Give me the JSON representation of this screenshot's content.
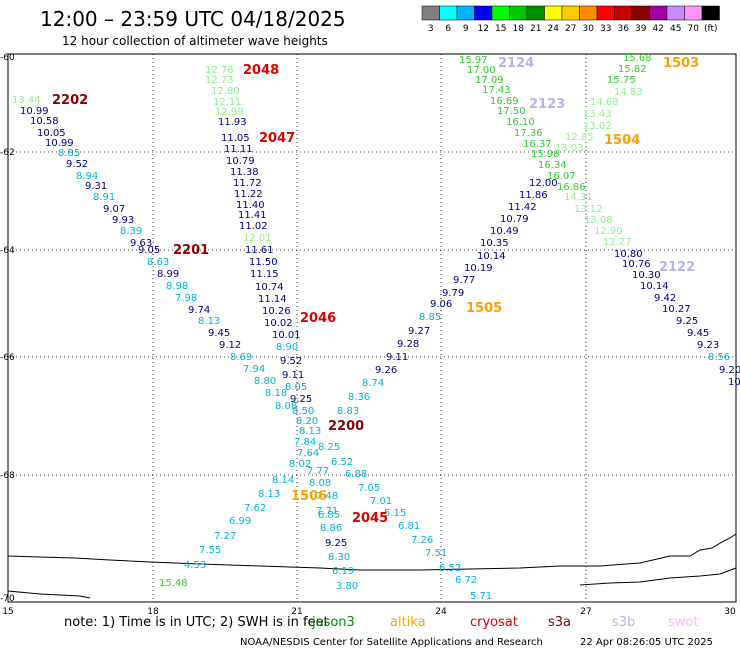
{
  "header": {
    "title": "12:00 – 23:59 UTC 04/18/2025",
    "subtitle": "12 hour collection of altimeter wave heights"
  },
  "legend": {
    "unit": "(ft)",
    "bins": [
      {
        "label": "3",
        "color": "#808080"
      },
      {
        "label": "6",
        "color": "#00ffff"
      },
      {
        "label": "9",
        "color": "#00b4ff"
      },
      {
        "label": "12",
        "color": "#0000ff"
      },
      {
        "label": "15",
        "color": "#00ff00"
      },
      {
        "label": "18",
        "color": "#00c800"
      },
      {
        "label": "21",
        "color": "#008c00"
      },
      {
        "label": "24",
        "color": "#ffff00"
      },
      {
        "label": "27",
        "color": "#ffcc00"
      },
      {
        "label": "30",
        "color": "#ff8c00"
      },
      {
        "label": "33",
        "color": "#ff0000"
      },
      {
        "label": "36",
        "color": "#c80000"
      },
      {
        "label": "39",
        "color": "#8c0000"
      },
      {
        "label": "42",
        "color": "#a000a0"
      },
      {
        "label": "45",
        "color": "#c88cff"
      },
      {
        "label": "70",
        "color": "#ff96ff"
      },
      {
        "label": "",
        "color": "#000000"
      }
    ]
  },
  "axes": {
    "lat_labels": [
      "-60",
      "-62",
      "-64",
      "-66",
      "-68",
      "-70"
    ],
    "lon_labels": [
      "15",
      "18",
      "21",
      "24",
      "27",
      "30"
    ]
  },
  "colors": {
    "c_green": "#32cd32",
    "c_lightgreen": "#90ee90",
    "c_navy": "#00008b",
    "c_blue": "#1e3ce6",
    "c_cyan": "#00b4dc",
    "c_lavender": "#b4b4f0",
    "c_red": "#dc0000",
    "c_darkred": "#8b0000",
    "c_orange": "#ffa000",
    "c_darkgreen": "#008c00"
  },
  "tracks": [
    {
      "label": "2202",
      "color": "c_darkred"
    },
    {
      "label": "2201",
      "color": "c_darkred"
    },
    {
      "label": "2048",
      "color": "c_red"
    },
    {
      "label": "2047",
      "color": "c_red"
    },
    {
      "label": "2046",
      "color": "c_red"
    },
    {
      "label": "2045",
      "color": "c_red"
    },
    {
      "label": "2200",
      "color": "c_darkred"
    },
    {
      "label": "1505",
      "color": "c_orange"
    },
    {
      "label": "1506",
      "color": "c_orange"
    },
    {
      "label": "2124",
      "color": "c_lavender"
    },
    {
      "label": "2123",
      "color": "c_lavender"
    },
    {
      "label": "1503",
      "color": "c_orange"
    },
    {
      "label": "1504",
      "color": "c_orange"
    },
    {
      "label": "2122",
      "color": "c_lavender"
    }
  ],
  "readings": [
    {
      "v": "13.44",
      "c": "c_lightgreen"
    },
    {
      "v": "10.99",
      "c": "c_navy"
    },
    {
      "v": "10.58",
      "c": "c_navy"
    },
    {
      "v": "10.05",
      "c": "c_navy"
    },
    {
      "v": "10.99",
      "c": "c_navy"
    },
    {
      "v": "8.85",
      "c": "c_cyan"
    },
    {
      "v": "9.52",
      "c": "c_navy"
    },
    {
      "v": "8.94",
      "c": "c_cyan"
    },
    {
      "v": "9.31",
      "c": "c_navy"
    },
    {
      "v": "8.91",
      "c": "c_cyan"
    },
    {
      "v": "9.07",
      "c": "c_navy"
    },
    {
      "v": "9.93",
      "c": "c_navy"
    },
    {
      "v": "8.39",
      "c": "c_cyan"
    },
    {
      "v": "9.63",
      "c": "c_navy"
    },
    {
      "v": "9.05",
      "c": "c_navy"
    },
    {
      "v": "8.63",
      "c": "c_cyan"
    },
    {
      "v": "8.99",
      "c": "c_navy"
    },
    {
      "v": "8.98",
      "c": "c_cyan"
    },
    {
      "v": "7.98",
      "c": "c_cyan"
    },
    {
      "v": "9.74",
      "c": "c_navy"
    },
    {
      "v": "8.13",
      "c": "c_cyan"
    },
    {
      "v": "9.45",
      "c": "c_navy"
    },
    {
      "v": "9.12",
      "c": "c_navy"
    },
    {
      "v": "8.69",
      "c": "c_cyan"
    },
    {
      "v": "7.94",
      "c": "c_cyan"
    },
    {
      "v": "8.80",
      "c": "c_cyan"
    },
    {
      "v": "8.18",
      "c": "c_cyan"
    },
    {
      "v": "8.08",
      "c": "c_cyan"
    },
    {
      "v": "12.76",
      "c": "c_lightgreen"
    },
    {
      "v": "12.73",
      "c": "c_lightgreen"
    },
    {
      "v": "12.80",
      "c": "c_lightgreen"
    },
    {
      "v": "12.11",
      "c": "c_lightgreen"
    },
    {
      "v": "12.99",
      "c": "c_lightgreen"
    },
    {
      "v": "11.93",
      "c": "c_navy"
    },
    {
      "v": "11.05",
      "c": "c_navy"
    },
    {
      "v": "11.11",
      "c": "c_navy"
    },
    {
      "v": "10.79",
      "c": "c_navy"
    },
    {
      "v": "11.38",
      "c": "c_navy"
    },
    {
      "v": "11.72",
      "c": "c_navy"
    },
    {
      "v": "11.22",
      "c": "c_navy"
    },
    {
      "v": "11.40",
      "c": "c_navy"
    },
    {
      "v": "11.41",
      "c": "c_navy"
    },
    {
      "v": "11.02",
      "c": "c_navy"
    },
    {
      "v": "12.01",
      "c": "c_lightgreen"
    },
    {
      "v": "11.61",
      "c": "c_navy"
    },
    {
      "v": "11.50",
      "c": "c_navy"
    },
    {
      "v": "11.15",
      "c": "c_navy"
    },
    {
      "v": "10.74",
      "c": "c_navy"
    },
    {
      "v": "11.14",
      "c": "c_navy"
    },
    {
      "v": "10.26",
      "c": "c_navy"
    },
    {
      "v": "10.02",
      "c": "c_navy"
    },
    {
      "v": "10.01",
      "c": "c_navy"
    },
    {
      "v": "8.90",
      "c": "c_cyan"
    },
    {
      "v": "9.52",
      "c": "c_navy"
    },
    {
      "v": "9.11",
      "c": "c_navy"
    },
    {
      "v": "8.05",
      "c": "c_cyan"
    },
    {
      "v": "9.25",
      "c": "c_navy"
    },
    {
      "v": "8.50",
      "c": "c_cyan"
    },
    {
      "v": "8.20",
      "c": "c_cyan"
    },
    {
      "v": "8.13",
      "c": "c_cyan"
    },
    {
      "v": "7.84",
      "c": "c_cyan"
    },
    {
      "v": "7.64",
      "c": "c_cyan"
    },
    {
      "v": "8.02",
      "c": "c_cyan"
    },
    {
      "v": "7.77",
      "c": "c_cyan"
    },
    {
      "v": "8.83",
      "c": "c_cyan"
    },
    {
      "v": "8.25",
      "c": "c_cyan"
    },
    {
      "v": "6.52",
      "c": "c_cyan"
    },
    {
      "v": "6.88",
      "c": "c_cyan"
    },
    {
      "v": "7.05",
      "c": "c_cyan"
    },
    {
      "v": "7.01",
      "c": "c_cyan"
    },
    {
      "v": "5.15",
      "c": "c_cyan"
    },
    {
      "v": "6.81",
      "c": "c_cyan"
    },
    {
      "v": "7.26",
      "c": "c_cyan"
    },
    {
      "v": "7.51",
      "c": "c_cyan"
    },
    {
      "v": "6.52",
      "c": "c_cyan"
    },
    {
      "v": "6.72",
      "c": "c_cyan"
    },
    {
      "v": "5.71",
      "c": "c_cyan"
    },
    {
      "v": "8.14",
      "c": "c_cyan"
    },
    {
      "v": "8.13",
      "c": "c_cyan"
    },
    {
      "v": "7.62",
      "c": "c_cyan"
    },
    {
      "v": "6.99",
      "c": "c_cyan"
    },
    {
      "v": "7.27",
      "c": "c_cyan"
    },
    {
      "v": "7.55",
      "c": "c_cyan"
    },
    {
      "v": "4.53",
      "c": "c_cyan"
    },
    {
      "v": "15.48",
      "c": "c_green"
    },
    {
      "v": "8.08",
      "c": "c_cyan"
    },
    {
      "v": "7.48",
      "c": "c_cyan"
    },
    {
      "v": "7.71",
      "c": "c_cyan"
    },
    {
      "v": "6.85",
      "c": "c_cyan"
    },
    {
      "v": "8.86",
      "c": "c_cyan"
    },
    {
      "v": "9.25",
      "c": "c_navy"
    },
    {
      "v": "8.30",
      "c": "c_cyan"
    },
    {
      "v": "6.19",
      "c": "c_cyan"
    },
    {
      "v": "3.80",
      "c": "c_cyan"
    },
    {
      "v": "8.74",
      "c": "c_cyan"
    },
    {
      "v": "8.36",
      "c": "c_cyan"
    },
    {
      "v": "9.26",
      "c": "c_navy"
    },
    {
      "v": "9.11",
      "c": "c_navy"
    },
    {
      "v": "9.28",
      "c": "c_navy"
    },
    {
      "v": "9.27",
      "c": "c_navy"
    },
    {
      "v": "8.85",
      "c": "c_cyan"
    },
    {
      "v": "9.06",
      "c": "c_navy"
    },
    {
      "v": "9.79",
      "c": "c_navy"
    },
    {
      "v": "9.77",
      "c": "c_navy"
    },
    {
      "v": "10.19",
      "c": "c_navy"
    },
    {
      "v": "10.14",
      "c": "c_navy"
    },
    {
      "v": "10.35",
      "c": "c_navy"
    },
    {
      "v": "10.49",
      "c": "c_navy"
    },
    {
      "v": "10.79",
      "c": "c_navy"
    },
    {
      "v": "11.42",
      "c": "c_navy"
    },
    {
      "v": "11.86",
      "c": "c_navy"
    },
    {
      "v": "12.00",
      "c": "c_navy"
    },
    {
      "v": "15.97",
      "c": "c_green"
    },
    {
      "v": "17.00",
      "c": "c_green"
    },
    {
      "v": "17.09",
      "c": "c_green"
    },
    {
      "v": "17.43",
      "c": "c_green"
    },
    {
      "v": "16.69",
      "c": "c_green"
    },
    {
      "v": "17.50",
      "c": "c_green"
    },
    {
      "v": "16.10",
      "c": "c_green"
    },
    {
      "v": "17.36",
      "c": "c_green"
    },
    {
      "v": "16.37",
      "c": "c_green"
    },
    {
      "v": "15.98",
      "c": "c_green"
    },
    {
      "v": "16.34",
      "c": "c_green"
    },
    {
      "v": "16.07",
      "c": "c_green"
    },
    {
      "v": "16.86",
      "c": "c_green"
    },
    {
      "v": "15.68",
      "c": "c_green"
    },
    {
      "v": "15.82",
      "c": "c_green"
    },
    {
      "v": "15.75",
      "c": "c_green"
    },
    {
      "v": "14.83",
      "c": "c_lightgreen"
    },
    {
      "v": "14.68",
      "c": "c_lightgreen"
    },
    {
      "v": "13.43",
      "c": "c_lightgreen"
    },
    {
      "v": "13.02",
      "c": "c_lightgreen"
    },
    {
      "v": "12.85",
      "c": "c_lightgreen"
    },
    {
      "v": "13.03",
      "c": "c_lightgreen"
    },
    {
      "v": "14.31",
      "c": "c_lightgreen"
    },
    {
      "v": "13.12",
      "c": "c_lightgreen"
    },
    {
      "v": "13.08",
      "c": "c_lightgreen"
    },
    {
      "v": "12.90",
      "c": "c_lightgreen"
    },
    {
      "v": "12.27",
      "c": "c_lightgreen"
    },
    {
      "v": "10.80",
      "c": "c_navy"
    },
    {
      "v": "10.76",
      "c": "c_navy"
    },
    {
      "v": "10.30",
      "c": "c_navy"
    },
    {
      "v": "10.14",
      "c": "c_navy"
    },
    {
      "v": "9.42",
      "c": "c_navy"
    },
    {
      "v": "10.27",
      "c": "c_navy"
    },
    {
      "v": "9.25",
      "c": "c_navy"
    },
    {
      "v": "9.45",
      "c": "c_navy"
    },
    {
      "v": "9.23",
      "c": "c_navy"
    },
    {
      "v": "8.56",
      "c": "c_cyan"
    },
    {
      "v": "9.20",
      "c": "c_navy"
    },
    {
      "v": "10",
      "c": "c_navy"
    }
  ],
  "note": {
    "text": "note:  1) Time is in UTC; 2) SWH is in feet",
    "satellites": [
      {
        "name": "jason3",
        "color": "c_darkgreen"
      },
      {
        "name": "altika",
        "color": "c_orange"
      },
      {
        "name": "cryosat",
        "color": "c_red"
      },
      {
        "name": "s3a",
        "color": "c_darkred"
      },
      {
        "name": "s3b",
        "color": "c_lavender"
      },
      {
        "name": "swot",
        "color": "#ffb4ff"
      }
    ]
  },
  "footer": {
    "credit": "NOAA/NESDIS Center for Satellite Applications and Research",
    "timestamp": "22 Apr 08:26:05 UTC 2025"
  }
}
